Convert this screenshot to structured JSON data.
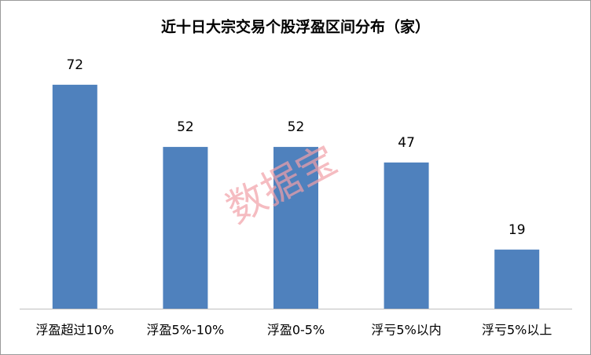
{
  "chart_data": {
    "type": "bar",
    "title": "近十日大宗交易个股浮盈区间分布（家）",
    "categories": [
      "浮盈超过10%",
      "浮盈5%-10%",
      "浮盈0-5%",
      "浮亏5%以内",
      "浮亏5%以上"
    ],
    "values": [
      72,
      52,
      52,
      47,
      19
    ],
    "color": "#4f81bd",
    "watermark": "数据宝"
  }
}
